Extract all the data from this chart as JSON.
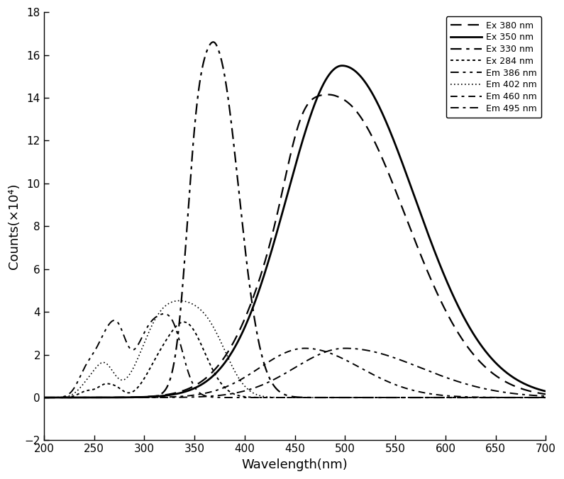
{
  "title": "",
  "xlabel": "Wavelength(nm)",
  "ylabel": "Counts(×10⁴)",
  "xlim": [
    200,
    700
  ],
  "ylim": [
    -2,
    18
  ],
  "xticks": [
    200,
    250,
    300,
    350,
    400,
    450,
    500,
    550,
    600,
    650,
    700
  ],
  "yticks": [
    -2,
    0,
    2,
    4,
    6,
    8,
    10,
    12,
    14,
    16,
    18
  ],
  "curves": [
    {
      "label": "Ex 380 nm",
      "color": "#000000",
      "linewidth": 1.6,
      "dashes": [
        7,
        4
      ],
      "shape": "ex_380"
    },
    {
      "label": "Ex 350 nm",
      "color": "#000000",
      "linewidth": 2.0,
      "dashes": [],
      "shape": "ex_350"
    },
    {
      "label": "Ex 330 nm",
      "color": "#000000",
      "linewidth": 1.6,
      "dashes": [
        7,
        3,
        2,
        3
      ],
      "shape": "ex_330"
    },
    {
      "label": "Ex 284 nm",
      "color": "#000000",
      "linewidth": 1.4,
      "dashes": [
        2,
        2
      ],
      "shape": "ex_284"
    },
    {
      "label": "Em 386 nm",
      "color": "#000000",
      "linewidth": 1.4,
      "dashes": [
        6,
        3,
        2,
        3,
        2,
        3
      ],
      "shape": "em_386"
    },
    {
      "label": "Em 402 nm",
      "color": "#000000",
      "linewidth": 1.2,
      "dashes": [
        1,
        2
      ],
      "shape": "em_402"
    },
    {
      "label": "Em 460 nm",
      "color": "#000000",
      "linewidth": 1.4,
      "dashes": [
        5,
        3,
        2,
        3
      ],
      "shape": "em_460"
    },
    {
      "label": "Em 495 nm",
      "color": "#000000",
      "linewidth": 1.4,
      "dashes": [
        6,
        3,
        2,
        3
      ],
      "shape": "em_495"
    }
  ],
  "legend_fontsize": 9,
  "axis_fontsize": 13,
  "tick_fontsize": 11,
  "background_color": "#ffffff"
}
